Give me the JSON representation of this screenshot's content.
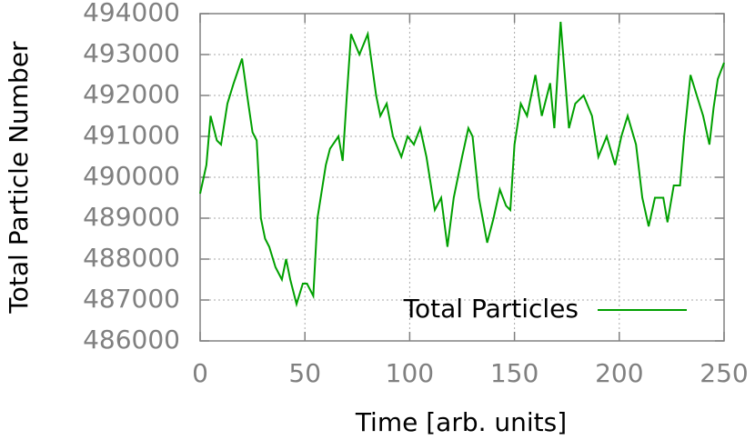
{
  "chart_data": {
    "type": "line",
    "xlabel": "Time [arb. units]",
    "ylabel": "Total Particle Number",
    "x": [
      0,
      3,
      5,
      8,
      10,
      13,
      16,
      18,
      20,
      23,
      25,
      27,
      29,
      31,
      33,
      36,
      39,
      41,
      43,
      46,
      49,
      51,
      54,
      56,
      60,
      62,
      66,
      68,
      70,
      72,
      76,
      80,
      84,
      86,
      89,
      92,
      96,
      99,
      102,
      105,
      108,
      112,
      115,
      118,
      121,
      125,
      128,
      130,
      133,
      137,
      140,
      143,
      146,
      148,
      150,
      153,
      156,
      160,
      163,
      167,
      169,
      172,
      176,
      179,
      183,
      187,
      190,
      194,
      198,
      201,
      204,
      208,
      211,
      214,
      217,
      221,
      223,
      226,
      229,
      231,
      234,
      237,
      240,
      243,
      245,
      247,
      250
    ],
    "series": [
      {
        "name": "Total Particles",
        "color": "#00a000",
        "values": [
          489600,
          490300,
          491500,
          490900,
          490800,
          491800,
          492300,
          492600,
          492900,
          491800,
          491100,
          490900,
          489000,
          488500,
          488300,
          487800,
          487500,
          488000,
          487500,
          486900,
          487400,
          487400,
          487100,
          489000,
          490300,
          490700,
          491000,
          490400,
          492000,
          493500,
          493000,
          493500,
          492000,
          491500,
          491800,
          491000,
          490500,
          491000,
          490800,
          491200,
          490500,
          489200,
          489500,
          488300,
          489500,
          490500,
          491200,
          491000,
          489500,
          488400,
          489000,
          489700,
          489300,
          489200,
          490800,
          491800,
          491500,
          492500,
          491500,
          492300,
          491200,
          493800,
          491200,
          491800,
          492000,
          491500,
          490500,
          491000,
          490300,
          491000,
          491500,
          490800,
          489500,
          488800,
          489500,
          489500,
          488900,
          489800,
          489800,
          491000,
          492500,
          492000,
          491500,
          490800,
          491700,
          492400,
          492800
        ]
      }
    ],
    "xlim": [
      0,
      250
    ],
    "ylim": [
      486000,
      494000
    ],
    "xticks": [
      0,
      50,
      100,
      150,
      200,
      250
    ],
    "yticks": [
      486000,
      487000,
      488000,
      489000,
      490000,
      491000,
      492000,
      493000,
      494000
    ],
    "grid": true,
    "legend": "lower right"
  }
}
